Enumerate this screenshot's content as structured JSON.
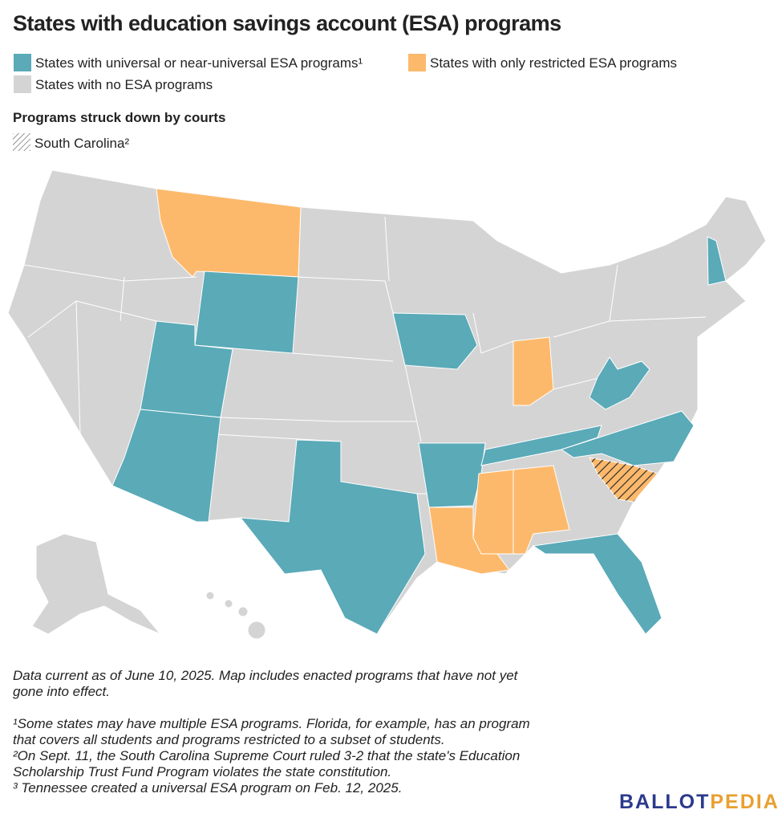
{
  "header": {
    "title": "States with education savings account (ESA) programs"
  },
  "legend": {
    "items": [
      {
        "label": "States with universal or near-universal ESA programs¹",
        "color": "#5aaab8"
      },
      {
        "label": "States with only restricted ESA programs",
        "color": "#fdb96b"
      },
      {
        "label": "States with no ESA programs",
        "color": "#d4d4d4"
      }
    ]
  },
  "struck_down": {
    "heading": "Programs struck down by courts",
    "item": "South Carolina²"
  },
  "notes": {
    "lines": [
      "Data current as of June 10, 2025. Map includes enacted programs that have not yet",
      "gone into effect.",
      "¹Some states may have multiple ESA programs. Florida, for example, has an program",
      "that covers all students and programs restricted to a subset of students.",
      "²On Sept. 11, the South Carolina Supreme Court ruled 3-2 that the state's Education",
      "Scholarship Trust Fund Program violates the state constitution.",
      "³ Tennessee created a universal ESA program on Feb. 12, 2025."
    ]
  },
  "logo": {
    "part1": "BALLOT",
    "part2": "PEDIA"
  }
}
